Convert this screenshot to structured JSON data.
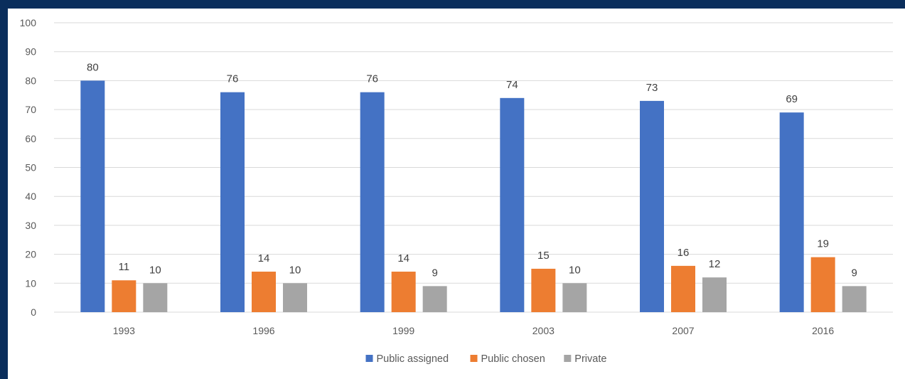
{
  "chart_data": {
    "type": "bar",
    "categories": [
      "1993",
      "1996",
      "1999",
      "2003",
      "2007",
      "2016"
    ],
    "series": [
      {
        "name": "Public assigned",
        "values": [
          80,
          76,
          76,
          74,
          73,
          69
        ],
        "color": "#4472c4"
      },
      {
        "name": "Public chosen",
        "values": [
          11,
          14,
          14,
          15,
          16,
          19
        ],
        "color": "#ed7d31"
      },
      {
        "name": "Private",
        "values": [
          10,
          10,
          9,
          10,
          12,
          9
        ],
        "color": "#a5a5a5"
      }
    ],
    "ylim": [
      0,
      100
    ],
    "yticks": [
      0,
      10,
      20,
      30,
      40,
      50,
      60,
      70,
      80,
      90,
      100
    ],
    "grid": true,
    "legend": "bottom-center",
    "data_labels": true
  },
  "colors": {
    "background": "#0a2e5c",
    "plot_background": "#ffffff",
    "gridline": "#d9d9d9",
    "text": "#595959"
  }
}
